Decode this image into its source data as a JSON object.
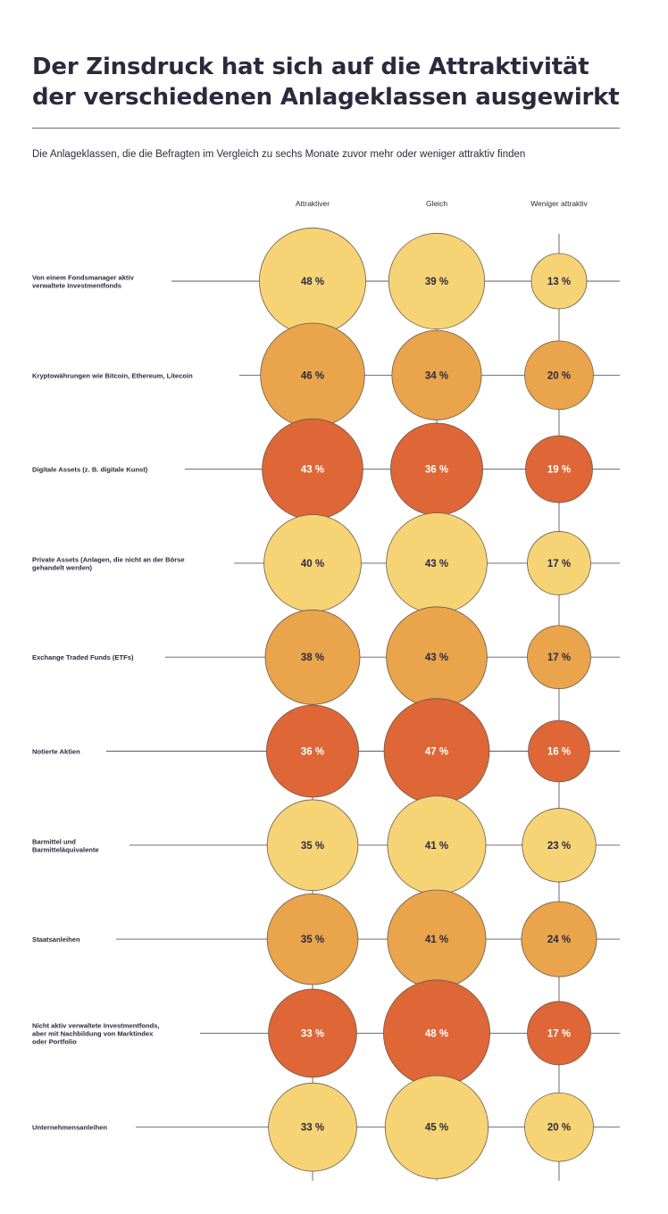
{
  "title": "Der Zinsdruck hat sich auf die Attraktivität der verschiedenen Anlageklassen ausgewirkt",
  "subtitle": "Die Anlageklassen, die die Befragten im Vergleich zu sechs Monate zuvor mehr oder weniger attraktiv finden",
  "colors": {
    "light": "#f6d476",
    "mid": "#e9a44c",
    "dark": "#de6637",
    "line": "#5a5a6a",
    "text": "#2b2a3d"
  },
  "chart_data": {
    "type": "bubble-matrix",
    "title": "Der Zinsdruck hat sich auf die Attraktivität der verschiedenen Anlageklassen ausgewirkt",
    "subtitle": "Die Anlageklassen, die die Befragten im Vergleich zu sechs Monate zuvor mehr oder weniger attraktiv finden",
    "columns": [
      "Attraktiver",
      "Gleich",
      "Weniger attraktiv"
    ],
    "unit": "%",
    "rows": [
      {
        "label": [
          "Von einem Fondsmanager aktiv",
          "verwaltete Investmentfonds"
        ],
        "values": [
          48,
          39,
          13
        ],
        "labels": [
          "48 %",
          "39 %",
          "13 %"
        ],
        "color": "light"
      },
      {
        "label": [
          "Kryptowährungen wie Bitcoin, Ethereum, Litecoin"
        ],
        "values": [
          46,
          34,
          20
        ],
        "labels": [
          "46 %",
          "34 %",
          "20 %"
        ],
        "color": "mid"
      },
      {
        "label": [
          "Digitale Assets (z. B. digitale Kunst)"
        ],
        "values": [
          43,
          36,
          19
        ],
        "labels": [
          "43 %",
          "36 %",
          "19 %"
        ],
        "color": "dark"
      },
      {
        "label": [
          "Private Assets (Anlagen, die nicht an der Börse",
          "gehandelt werden)"
        ],
        "values": [
          40,
          43,
          17
        ],
        "labels": [
          "40 %",
          "43 %",
          "17 %"
        ],
        "color": "light"
      },
      {
        "label": [
          "Exchange Traded Funds (ETFs)"
        ],
        "values": [
          38,
          43,
          17
        ],
        "labels": [
          "38 %",
          "43 %",
          "17 %"
        ],
        "color": "mid"
      },
      {
        "label": [
          "Notierte Aktien"
        ],
        "values": [
          36,
          47,
          16
        ],
        "labels": [
          "36 %",
          "47 %",
          "16 %"
        ],
        "color": "dark"
      },
      {
        "label": [
          "Barmittel und",
          "Barmitteläquivalente"
        ],
        "values": [
          35,
          41,
          23
        ],
        "labels": [
          "35 %",
          "41 %",
          "23 %"
        ],
        "color": "light"
      },
      {
        "label": [
          "Staatsanleihen"
        ],
        "values": [
          35,
          41,
          24
        ],
        "labels": [
          "35 %",
          "41 %",
          "24 %"
        ],
        "color": "mid"
      },
      {
        "label": [
          "Nicht aktiv verwaltete Investmentfonds,",
          "aber mit Nachbildung von Marktindex",
          "oder Portfolio"
        ],
        "values": [
          33,
          48,
          17
        ],
        "labels": [
          "33 %",
          "48 %",
          "17 %"
        ],
        "color": "dark"
      },
      {
        "label": [
          "Unternehmensanleihen"
        ],
        "values": [
          33,
          45,
          20
        ],
        "labels": [
          "33 %",
          "45 %",
          "20 %"
        ],
        "color": "light"
      }
    ]
  }
}
